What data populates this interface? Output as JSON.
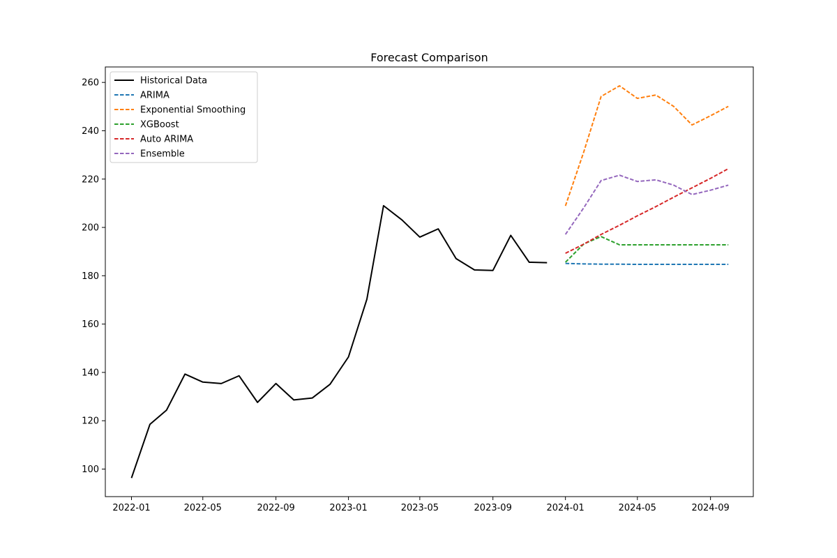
{
  "chart_data": {
    "type": "line",
    "title": "Forecast Comparison",
    "xlabel": "",
    "ylabel": "",
    "xlim": [
      "2021-11-18",
      "2024-11-12"
    ],
    "ylim": [
      88.6,
      266.4
    ],
    "x_ticks": [
      "2022-01",
      "2022-05",
      "2022-09",
      "2023-01",
      "2023-05",
      "2023-09",
      "2024-01",
      "2024-05",
      "2024-09"
    ],
    "y_ticks": [
      100,
      120,
      140,
      160,
      180,
      200,
      220,
      240,
      260
    ],
    "grid": false,
    "legend_position": "top-left",
    "series": [
      {
        "name": "Historical Data",
        "color": "#000000",
        "style": "solid",
        "x": [
          "2022-01-01",
          "2022-02-01",
          "2022-03-01",
          "2022-04-01",
          "2022-05-01",
          "2022-06-01",
          "2022-07-01",
          "2022-08-01",
          "2022-09-01",
          "2022-10-01",
          "2022-11-01",
          "2022-12-01",
          "2023-01-01",
          "2023-02-01",
          "2023-03-01",
          "2023-04-01",
          "2023-05-01",
          "2023-06-01",
          "2023-07-01",
          "2023-08-01",
          "2023-09-01",
          "2023-10-01",
          "2023-11-01",
          "2023-12-01"
        ],
        "y": [
          96.3,
          118.5,
          124.4,
          139.3,
          136.0,
          135.4,
          138.6,
          127.6,
          135.4,
          128.6,
          129.4,
          135.1,
          146.4,
          170.3,
          209.0,
          203.1,
          196.0,
          199.4,
          187.1,
          182.4,
          182.2,
          196.7,
          185.6,
          185.4
        ]
      },
      {
        "name": "ARIMA",
        "color": "#1f77b4",
        "style": "dashed",
        "x": [
          "2024-01-01",
          "2024-02-01",
          "2024-03-01",
          "2024-04-01",
          "2024-05-01",
          "2024-06-01",
          "2024-07-01",
          "2024-08-01",
          "2024-09-01",
          "2024-10-01"
        ],
        "y": [
          185.1,
          184.9,
          184.8,
          184.8,
          184.7,
          184.7,
          184.7,
          184.7,
          184.7,
          184.7
        ]
      },
      {
        "name": "Exponential Smoothing",
        "color": "#ff7f0e",
        "style": "dashed",
        "x": [
          "2024-01-01",
          "2024-02-01",
          "2024-03-01",
          "2024-04-01",
          "2024-05-01",
          "2024-06-01",
          "2024-07-01",
          "2024-08-01",
          "2024-09-01",
          "2024-10-01"
        ],
        "y": [
          208.9,
          231.4,
          254.2,
          258.6,
          253.4,
          254.8,
          250.1,
          242.4,
          246.2,
          250.1
        ]
      },
      {
        "name": "XGBoost",
        "color": "#2ca02c",
        "style": "dashed",
        "x": [
          "2024-01-01",
          "2024-02-01",
          "2024-03-01",
          "2024-04-01",
          "2024-05-01",
          "2024-06-01",
          "2024-07-01",
          "2024-08-01",
          "2024-09-01",
          "2024-10-01"
        ],
        "y": [
          185.6,
          193.2,
          196.2,
          192.8,
          192.8,
          192.8,
          192.8,
          192.8,
          192.8,
          192.8
        ]
      },
      {
        "name": "Auto ARIMA",
        "color": "#d62728",
        "style": "dashed",
        "x": [
          "2024-01-01",
          "2024-02-01",
          "2024-03-01",
          "2024-04-01",
          "2024-05-01",
          "2024-06-01",
          "2024-07-01",
          "2024-08-01",
          "2024-09-01",
          "2024-10-01"
        ],
        "y": [
          189.3,
          193.1,
          197.1,
          200.9,
          204.8,
          208.6,
          212.5,
          216.4,
          220.3,
          224.3
        ]
      },
      {
        "name": "Ensemble",
        "color": "#9467bd",
        "style": "dashed",
        "x": [
          "2024-01-01",
          "2024-02-01",
          "2024-03-01",
          "2024-04-01",
          "2024-05-01",
          "2024-06-01",
          "2024-07-01",
          "2024-08-01",
          "2024-09-01",
          "2024-10-01"
        ],
        "y": [
          197.1,
          208.2,
          219.4,
          221.6,
          219.0,
          219.7,
          217.5,
          213.6,
          215.4,
          217.5
        ]
      }
    ]
  }
}
